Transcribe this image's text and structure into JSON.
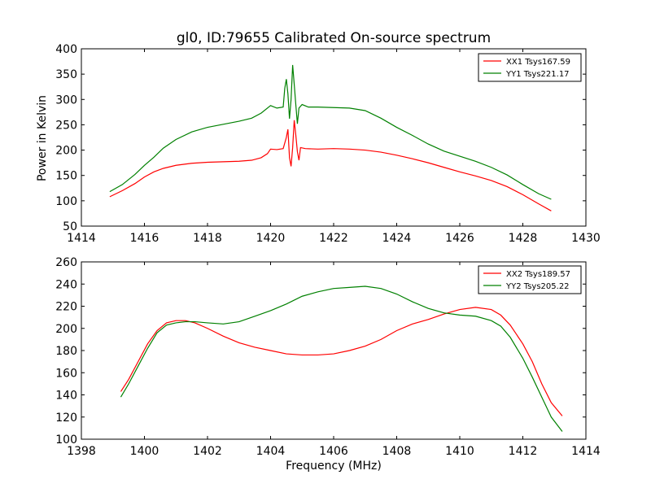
{
  "chart_data": [
    {
      "type": "line",
      "title": "gl0, ID:79655 Calibrated On-source spectrum",
      "xlabel": "",
      "ylabel": "Power in Kelvin",
      "xlim": [
        1414,
        1430
      ],
      "ylim": [
        50,
        400
      ],
      "x_ticks": [
        "1414",
        "1416",
        "1418",
        "1420",
        "1422",
        "1424",
        "1426",
        "1428",
        "1430"
      ],
      "y_ticks": [
        "50",
        "100",
        "150",
        "200",
        "250",
        "300",
        "350",
        "400"
      ],
      "grid": false,
      "legend_position": "top-right",
      "series": [
        {
          "name": "XX1 Tsys167.59",
          "color": "#ff0000",
          "points": [
            [
              1414.9,
              108
            ],
            [
              1415.3,
              120
            ],
            [
              1415.7,
              134
            ],
            [
              1416.0,
              147
            ],
            [
              1416.3,
              157
            ],
            [
              1416.6,
              164
            ],
            [
              1417.0,
              170
            ],
            [
              1417.5,
              174
            ],
            [
              1418.0,
              176
            ],
            [
              1418.5,
              177
            ],
            [
              1419.0,
              178
            ],
            [
              1419.4,
              180
            ],
            [
              1419.7,
              185
            ],
            [
              1419.9,
              193
            ],
            [
              1420.0,
              202
            ],
            [
              1420.2,
              201
            ],
            [
              1420.4,
              203
            ],
            [
              1420.5,
              225
            ],
            [
              1420.55,
              241
            ],
            [
              1420.6,
              185
            ],
            [
              1420.65,
              168
            ],
            [
              1420.7,
              205
            ],
            [
              1420.75,
              259
            ],
            [
              1420.8,
              230
            ],
            [
              1420.85,
              197
            ],
            [
              1420.9,
              180
            ],
            [
              1420.95,
              205
            ],
            [
              1421.1,
              203
            ],
            [
              1421.5,
              202
            ],
            [
              1422.0,
              203
            ],
            [
              1422.5,
              202
            ],
            [
              1423.0,
              200
            ],
            [
              1423.5,
              196
            ],
            [
              1424.0,
              190
            ],
            [
              1424.5,
              183
            ],
            [
              1425.0,
              175
            ],
            [
              1425.5,
              166
            ],
            [
              1426.0,
              157
            ],
            [
              1426.5,
              149
            ],
            [
              1427.0,
              140
            ],
            [
              1427.5,
              128
            ],
            [
              1428.0,
              112
            ],
            [
              1428.5,
              94
            ],
            [
              1428.9,
              80
            ]
          ]
        },
        {
          "name": "YY1 Tsys221.17",
          "color": "#008000",
          "points": [
            [
              1414.9,
              118
            ],
            [
              1415.3,
              132
            ],
            [
              1415.7,
              152
            ],
            [
              1416.0,
              170
            ],
            [
              1416.3,
              186
            ],
            [
              1416.6,
              204
            ],
            [
              1417.0,
              221
            ],
            [
              1417.5,
              236
            ],
            [
              1418.0,
              245
            ],
            [
              1418.5,
              251
            ],
            [
              1419.0,
              257
            ],
            [
              1419.4,
              263
            ],
            [
              1419.7,
              273
            ],
            [
              1420.0,
              288
            ],
            [
              1420.2,
              283
            ],
            [
              1420.4,
              285
            ],
            [
              1420.45,
              322
            ],
            [
              1420.5,
              340
            ],
            [
              1420.55,
              311
            ],
            [
              1420.6,
              262
            ],
            [
              1420.65,
              300
            ],
            [
              1420.7,
              368
            ],
            [
              1420.75,
              330
            ],
            [
              1420.8,
              290
            ],
            [
              1420.85,
              252
            ],
            [
              1420.9,
              283
            ],
            [
              1421.0,
              290
            ],
            [
              1421.2,
              285
            ],
            [
              1421.5,
              285
            ],
            [
              1422.0,
              284
            ],
            [
              1422.5,
              283
            ],
            [
              1423.0,
              278
            ],
            [
              1423.5,
              263
            ],
            [
              1424.0,
              245
            ],
            [
              1424.5,
              229
            ],
            [
              1425.0,
              212
            ],
            [
              1425.5,
              198
            ],
            [
              1426.0,
              188
            ],
            [
              1426.5,
              178
            ],
            [
              1427.0,
              166
            ],
            [
              1427.5,
              151
            ],
            [
              1428.0,
              132
            ],
            [
              1428.5,
              114
            ],
            [
              1428.9,
              103
            ]
          ]
        }
      ]
    },
    {
      "type": "line",
      "title": "",
      "xlabel": "Frequency (MHz)",
      "ylabel": "",
      "xlim": [
        1398,
        1414
      ],
      "ylim": [
        100,
        260
      ],
      "x_ticks": [
        "1398",
        "1400",
        "1402",
        "1404",
        "1406",
        "1408",
        "1410",
        "1412",
        "1414"
      ],
      "y_ticks": [
        "100",
        "120",
        "140",
        "160",
        "180",
        "200",
        "220",
        "240",
        "260"
      ],
      "grid": false,
      "legend_position": "top-right",
      "series": [
        {
          "name": "XX2 Tsys189.57",
          "color": "#ff0000",
          "points": [
            [
              1399.25,
              143
            ],
            [
              1399.5,
              154
            ],
            [
              1399.8,
              170
            ],
            [
              1400.1,
              186
            ],
            [
              1400.4,
              198
            ],
            [
              1400.7,
              205
            ],
            [
              1401.0,
              207
            ],
            [
              1401.3,
              207
            ],
            [
              1401.6,
              205
            ],
            [
              1402.0,
              200
            ],
            [
              1402.5,
              193
            ],
            [
              1403.0,
              187
            ],
            [
              1403.5,
              183
            ],
            [
              1404.0,
              180
            ],
            [
              1404.5,
              177
            ],
            [
              1405.0,
              176
            ],
            [
              1405.5,
              176
            ],
            [
              1406.0,
              177
            ],
            [
              1406.5,
              180
            ],
            [
              1407.0,
              184
            ],
            [
              1407.5,
              190
            ],
            [
              1408.0,
              198
            ],
            [
              1408.5,
              204
            ],
            [
              1409.0,
              208
            ],
            [
              1409.5,
              213
            ],
            [
              1410.0,
              217
            ],
            [
              1410.5,
              219
            ],
            [
              1411.0,
              217
            ],
            [
              1411.3,
              212
            ],
            [
              1411.6,
              203
            ],
            [
              1412.0,
              186
            ],
            [
              1412.3,
              170
            ],
            [
              1412.6,
              150
            ],
            [
              1412.9,
              133
            ],
            [
              1413.25,
              121
            ]
          ]
        },
        {
          "name": "YY2 Tsys205.22",
          "color": "#008000",
          "points": [
            [
              1399.25,
              138
            ],
            [
              1399.5,
              150
            ],
            [
              1399.8,
              166
            ],
            [
              1400.1,
              182
            ],
            [
              1400.4,
              196
            ],
            [
              1400.7,
              203
            ],
            [
              1401.0,
              205
            ],
            [
              1401.3,
              206
            ],
            [
              1401.6,
              206
            ],
            [
              1402.0,
              205
            ],
            [
              1402.5,
              204
            ],
            [
              1403.0,
              206
            ],
            [
              1403.5,
              211
            ],
            [
              1404.0,
              216
            ],
            [
              1404.5,
              222
            ],
            [
              1405.0,
              229
            ],
            [
              1405.5,
              233
            ],
            [
              1406.0,
              236
            ],
            [
              1406.5,
              237
            ],
            [
              1407.0,
              238
            ],
            [
              1407.5,
              236
            ],
            [
              1408.0,
              231
            ],
            [
              1408.5,
              224
            ],
            [
              1409.0,
              218
            ],
            [
              1409.5,
              214
            ],
            [
              1410.0,
              212
            ],
            [
              1410.5,
              211
            ],
            [
              1411.0,
              207
            ],
            [
              1411.3,
              202
            ],
            [
              1411.6,
              192
            ],
            [
              1412.0,
              173
            ],
            [
              1412.3,
              156
            ],
            [
              1412.6,
              138
            ],
            [
              1412.9,
              120
            ],
            [
              1413.25,
              107
            ]
          ]
        }
      ]
    }
  ]
}
